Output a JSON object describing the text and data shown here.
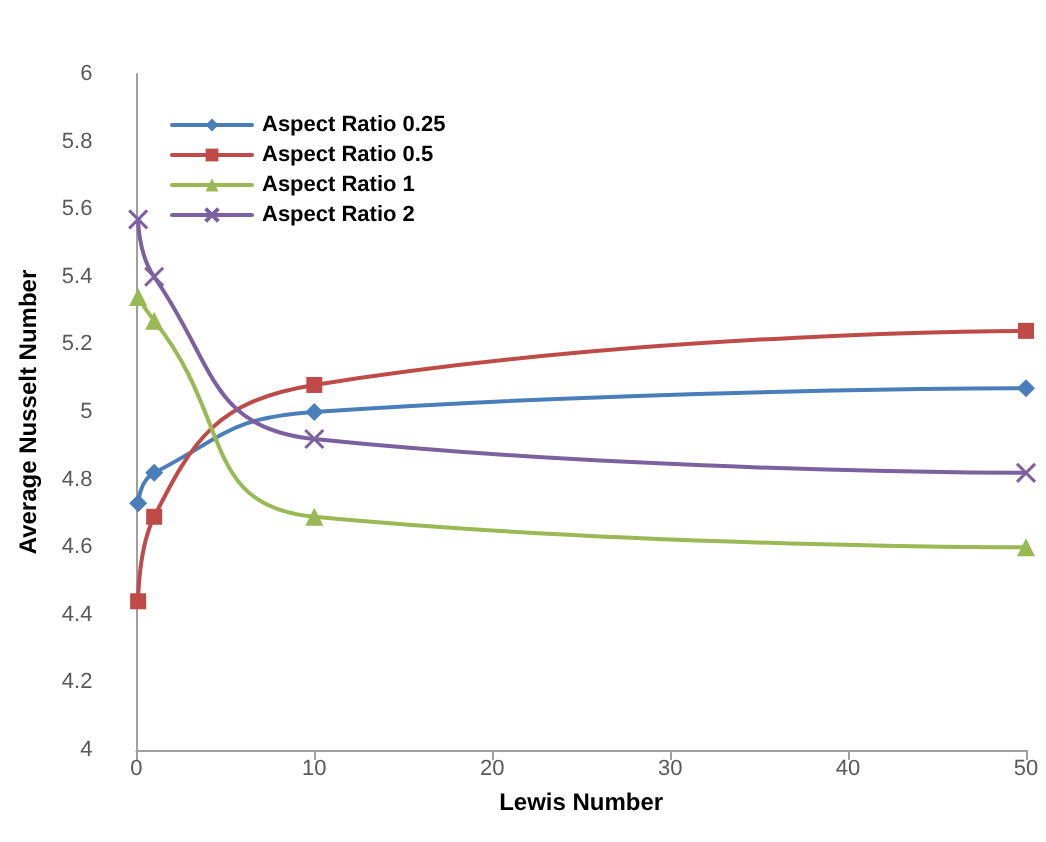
{
  "chart_data": {
    "type": "line",
    "xlabel": "Lewis Number",
    "ylabel": "Average Nusselt Number",
    "x": [
      0.1,
      1,
      10,
      50
    ],
    "series": [
      {
        "name": "Aspect Ratio 0.25",
        "color": "#4a7ebb",
        "marker": "diamond",
        "values": [
          4.73,
          4.82,
          5.0,
          5.07
        ]
      },
      {
        "name": "Aspect Ratio 0.5",
        "color": "#be4b48",
        "marker": "square",
        "values": [
          4.44,
          4.69,
          5.08,
          5.24
        ]
      },
      {
        "name": "Aspect Ratio 1",
        "color": "#98b954",
        "marker": "triangle",
        "values": [
          5.34,
          5.27,
          4.69,
          4.6
        ]
      },
      {
        "name": "Aspect Ratio 2",
        "color": "#7d60a0",
        "marker": "cross",
        "values": [
          5.57,
          5.4,
          4.92,
          4.82
        ]
      }
    ],
    "xlim": [
      0,
      50
    ],
    "xticks": [
      0,
      10,
      20,
      30,
      40,
      50
    ],
    "ylim": [
      4,
      6
    ],
    "yticks": [
      4,
      {
        "value": 4.2,
        "label": "4.2"
      },
      {
        "value": 4.4,
        "label": "4.4"
      },
      {
        "value": 4.6,
        "label": "4.6"
      },
      {
        "value": 4.8,
        "label": "4.8"
      },
      5,
      {
        "value": 5.2,
        "label": "5.2"
      },
      {
        "value": 5.4,
        "label": "5.4"
      },
      {
        "value": 5.6,
        "label": "5.6"
      },
      {
        "value": 5.8,
        "label": "5.8"
      },
      6
    ],
    "grid": false,
    "legend": "top left"
  }
}
